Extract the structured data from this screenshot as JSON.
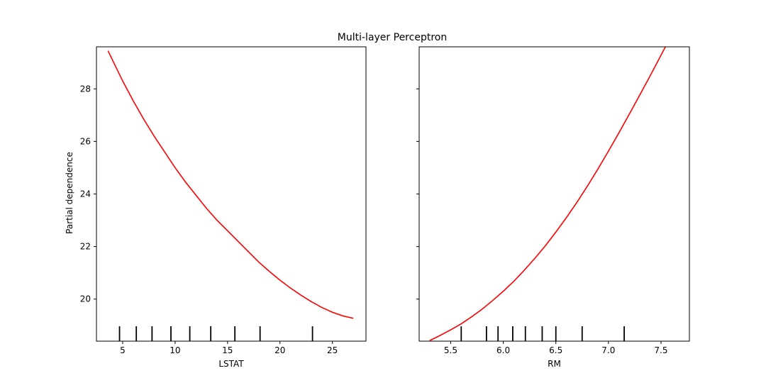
{
  "chart_data": {
    "type": "line",
    "title": "Multi-layer Perceptron",
    "ylabel": "Partial dependence",
    "ylim": [
      18.4,
      29.6
    ],
    "yticks": [
      20,
      22,
      24,
      26,
      28
    ],
    "line_color": "#ff0000",
    "decile_color": "#000000",
    "grid": false,
    "panels": [
      {
        "xlabel": "LSTAT",
        "xlim": [
          2.5,
          28.2
        ],
        "xticks": [
          5,
          10,
          15,
          20,
          25
        ],
        "x": [
          3.6,
          5,
          6,
          7,
          8,
          9,
          10,
          11,
          12,
          13,
          14,
          15,
          16,
          17,
          18,
          19,
          20,
          21,
          22,
          23,
          24,
          25,
          26,
          27
        ],
        "y": [
          29.45,
          28.3,
          27.55,
          26.85,
          26.2,
          25.6,
          25.0,
          24.45,
          23.95,
          23.45,
          23.0,
          22.6,
          22.2,
          21.8,
          21.4,
          21.05,
          20.72,
          20.42,
          20.15,
          19.9,
          19.68,
          19.5,
          19.36,
          19.27
        ],
        "deciles": [
          4.7,
          6.3,
          7.8,
          9.6,
          11.4,
          13.4,
          15.7,
          18.1,
          23.1
        ]
      },
      {
        "xlabel": "RM",
        "xlim": [
          5.2,
          7.77
        ],
        "xticks": [
          5.5,
          6.0,
          6.5,
          7.0,
          7.5
        ],
        "x": [
          5.3,
          5.4,
          5.5,
          5.6,
          5.7,
          5.8,
          5.9,
          6.0,
          6.1,
          6.2,
          6.3,
          6.4,
          6.5,
          6.6,
          6.7,
          6.8,
          6.9,
          7.0,
          7.1,
          7.2,
          7.3,
          7.4,
          7.5,
          7.6,
          7.62
        ],
        "y": [
          18.42,
          18.62,
          18.83,
          19.06,
          19.33,
          19.62,
          19.95,
          20.3,
          20.68,
          21.1,
          21.55,
          22.03,
          22.55,
          23.1,
          23.68,
          24.3,
          24.95,
          25.63,
          26.33,
          27.05,
          27.78,
          28.52,
          29.28,
          30.05,
          30.2
        ],
        "deciles": [
          5.6,
          5.84,
          5.95,
          6.09,
          6.21,
          6.37,
          6.5,
          6.75,
          7.15
        ]
      }
    ]
  }
}
